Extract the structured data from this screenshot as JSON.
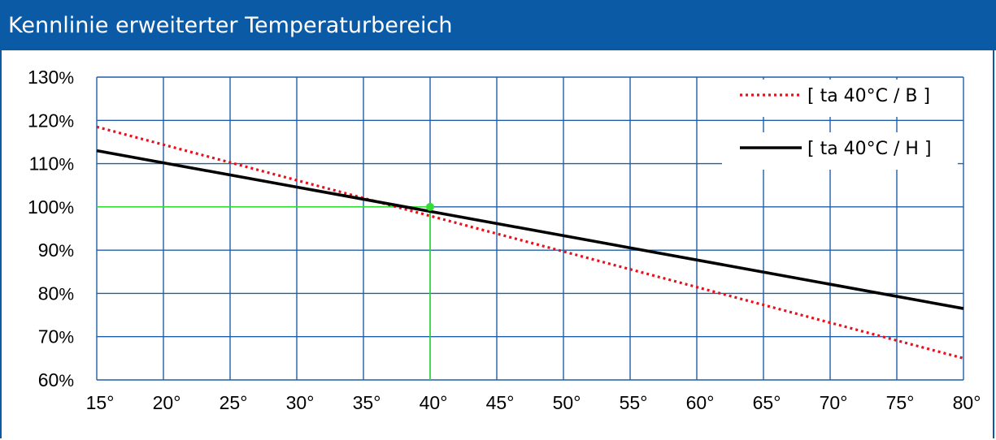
{
  "header": {
    "title": "Kennlinie erweiterter Temperaturbereich"
  },
  "colors": {
    "header": "#0b5aa6",
    "grid": "#1f5fa8",
    "series_b": "#e8101a",
    "series_h": "#000000",
    "reference": "#33dd33"
  },
  "chart_data": {
    "type": "line",
    "title": "Kennlinie erweiterter Temperaturbereich",
    "xlabel": "",
    "ylabel": "",
    "xlim": [
      15,
      80
    ],
    "ylim": [
      60,
      130
    ],
    "x_ticks": [
      15,
      20,
      25,
      30,
      35,
      40,
      45,
      50,
      55,
      60,
      65,
      70,
      75,
      80
    ],
    "x_tick_labels": [
      "15°",
      "20°",
      "25°",
      "30°",
      "35°",
      "40°",
      "45°",
      "50°",
      "55°",
      "60°",
      "65°",
      "70°",
      "75°",
      "80°"
    ],
    "y_ticks": [
      60,
      70,
      80,
      90,
      100,
      110,
      120,
      130
    ],
    "y_tick_labels": [
      "60%",
      "70%",
      "80%",
      "90%",
      "100%",
      "110%",
      "120%",
      "130%"
    ],
    "grid": true,
    "legend_position": "top-right",
    "series": [
      {
        "name": "[ ta 40°C / B ]",
        "style": "dotted",
        "color": "#e8101a",
        "x": [
          15,
          80
        ],
        "y": [
          118.5,
          65
        ]
      },
      {
        "name": "[ ta 40°C / H ]",
        "style": "solid",
        "color": "#000000",
        "x": [
          15,
          80
        ],
        "y": [
          113,
          76.5
        ]
      }
    ],
    "reference_point": {
      "x": 40,
      "y": 100,
      "color": "#33dd33"
    }
  }
}
